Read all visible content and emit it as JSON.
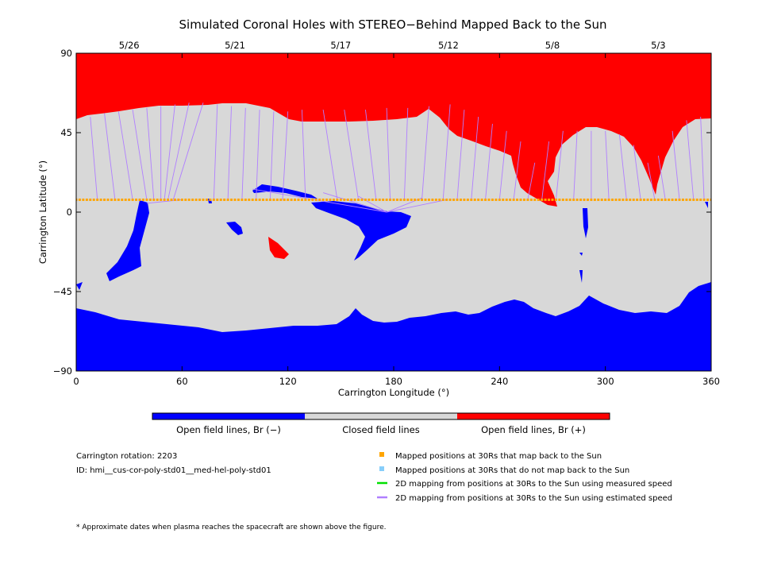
{
  "chart_data": {
    "type": "heatmap",
    "title": "Simulated Coronal Holes with STEREO−Behind Mapped Back to the Sun",
    "xlabel": "Carrington Longitude (°)",
    "ylabel": "Carrington Latitude (°)",
    "xlim": [
      0,
      360
    ],
    "ylim": [
      -90,
      90
    ],
    "xticks": [
      0,
      60,
      120,
      180,
      240,
      300,
      360
    ],
    "yticks": [
      90,
      45,
      0,
      -45,
      -90
    ],
    "top_axis": {
      "dates": [
        {
          "label": "5/26",
          "lon": 30
        },
        {
          "label": "5/21",
          "lon": 90
        },
        {
          "label": "5/17",
          "lon": 150
        },
        {
          "label": "5/12",
          "lon": 211
        },
        {
          "label": "5/8",
          "lon": 270
        },
        {
          "label": "5/3",
          "lon": 330
        }
      ]
    },
    "colors": {
      "open_negative": "#0000ff",
      "closed": "#d8d8d8",
      "open_positive": "#ff0000",
      "mapped_points": "#ffa500",
      "unmapped_points": "#87cefa",
      "measured_speed": "#00e000",
      "estimated_speed": "#b07fff"
    },
    "colorbar": [
      "Open field lines, Br (−)",
      "Closed field lines",
      "Open field lines, Br (+)"
    ],
    "mapped_latitude": 7,
    "mapping_lines": [
      {
        "from_lon": 0,
        "from_lat": 52,
        "to_lon": 0,
        "to_lat": 7
      },
      {
        "from_lon": 8,
        "from_lat": 54,
        "to_lon": 12,
        "to_lat": 7
      },
      {
        "from_lon": 16,
        "from_lat": 56,
        "to_lon": 22,
        "to_lat": 7
      },
      {
        "from_lon": 24,
        "from_lat": 57,
        "to_lon": 32,
        "to_lat": 7
      },
      {
        "from_lon": 32,
        "from_lat": 58,
        "to_lon": 40,
        "to_lat": 7
      },
      {
        "from_lon": 40,
        "from_lat": 59,
        "to_lon": 44,
        "to_lat": 7
      },
      {
        "from_lon": 48,
        "from_lat": 60,
        "to_lon": 48,
        "to_lat": 7
      },
      {
        "from_lon": 56,
        "from_lat": 61,
        "to_lon": 50,
        "to_lat": 7
      },
      {
        "from_lon": 64,
        "from_lat": 62,
        "to_lon": 52,
        "to_lat": 7
      },
      {
        "from_lon": 72,
        "from_lat": 62,
        "to_lon": 55,
        "to_lat": 7
      },
      {
        "from_lon": 80,
        "from_lat": 61,
        "to_lon": 78,
        "to_lat": 7
      },
      {
        "from_lon": 88,
        "from_lat": 60,
        "to_lon": 86,
        "to_lat": 7
      },
      {
        "from_lon": 96,
        "from_lat": 59,
        "to_lon": 94,
        "to_lat": 7
      },
      {
        "from_lon": 104,
        "from_lat": 58,
        "to_lon": 102,
        "to_lat": 7
      },
      {
        "from_lon": 112,
        "from_lat": 57,
        "to_lon": 110,
        "to_lat": 7
      },
      {
        "from_lon": 120,
        "from_lat": 57,
        "to_lon": 117,
        "to_lat": 7
      },
      {
        "from_lon": 128,
        "from_lat": 58,
        "to_lon": 130,
        "to_lat": 7
      },
      {
        "from_lon": 140,
        "from_lat": 58,
        "to_lon": 148,
        "to_lat": 7
      },
      {
        "from_lon": 152,
        "from_lat": 58,
        "to_lon": 160,
        "to_lat": 7
      },
      {
        "from_lon": 164,
        "from_lat": 58,
        "to_lon": 170,
        "to_lat": 7
      },
      {
        "from_lon": 176,
        "from_lat": 59,
        "to_lon": 178,
        "to_lat": 7
      },
      {
        "from_lon": 188,
        "from_lat": 59,
        "to_lon": 186,
        "to_lat": 7
      },
      {
        "from_lon": 200,
        "from_lat": 60,
        "to_lon": 196,
        "to_lat": 7
      },
      {
        "from_lon": 212,
        "from_lat": 61,
        "to_lon": 208,
        "to_lat": 7
      },
      {
        "from_lon": 220,
        "from_lat": 58,
        "to_lon": 216,
        "to_lat": 7
      },
      {
        "from_lon": 228,
        "from_lat": 54,
        "to_lon": 224,
        "to_lat": 7
      },
      {
        "from_lon": 236,
        "from_lat": 50,
        "to_lon": 232,
        "to_lat": 7
      },
      {
        "from_lon": 244,
        "from_lat": 46,
        "to_lon": 240,
        "to_lat": 7
      },
      {
        "from_lon": 252,
        "from_lat": 40,
        "to_lon": 248,
        "to_lat": 7
      },
      {
        "from_lon": 260,
        "from_lat": 28,
        "to_lon": 256,
        "to_lat": 7
      },
      {
        "from_lon": 268,
        "from_lat": 40,
        "to_lon": 264,
        "to_lat": 7
      },
      {
        "from_lon": 276,
        "from_lat": 46,
        "to_lon": 272,
        "to_lat": 7
      },
      {
        "from_lon": 284,
        "from_lat": 46,
        "to_lon": 282,
        "to_lat": 7
      },
      {
        "from_lon": 292,
        "from_lat": 46,
        "to_lon": 292,
        "to_lat": 7
      },
      {
        "from_lon": 300,
        "from_lat": 46,
        "to_lon": 302,
        "to_lat": 7
      },
      {
        "from_lon": 308,
        "from_lat": 44,
        "to_lon": 312,
        "to_lat": 7
      },
      {
        "from_lon": 316,
        "from_lat": 38,
        "to_lon": 320,
        "to_lat": 7
      },
      {
        "from_lon": 324,
        "from_lat": 28,
        "to_lon": 328,
        "to_lat": 7
      },
      {
        "from_lon": 330,
        "from_lat": 32,
        "to_lon": 334,
        "to_lat": 7
      },
      {
        "from_lon": 338,
        "from_lat": 46,
        "to_lon": 342,
        "to_lat": 7
      },
      {
        "from_lon": 346,
        "from_lat": 52,
        "to_lon": 350,
        "to_lat": 7
      },
      {
        "from_lon": 354,
        "from_lat": 54,
        "to_lon": 356,
        "to_lat": 7
      },
      {
        "from_lon": 100,
        "from_lat": 13,
        "to_lon": 176,
        "to_lat": 0
      },
      {
        "from_lon": 140,
        "from_lat": 11,
        "to_lon": 176,
        "to_lat": 0
      },
      {
        "from_lon": 160,
        "from_lat": 9,
        "to_lon": 176,
        "to_lat": 0
      },
      {
        "from_lon": 196,
        "from_lat": 8,
        "to_lon": 176,
        "to_lat": 0
      },
      {
        "from_lon": 210,
        "from_lat": 7,
        "to_lon": 176,
        "to_lat": 0
      },
      {
        "from_lon": 60,
        "from_lat": 7,
        "to_lon": 40,
        "to_lat": 5
      }
    ]
  },
  "info": {
    "carrington_rotation": "Carrington rotation: 2203",
    "model_id": "ID: hmi__cus-cor-poly-std01__med-hel-poly-std01"
  },
  "legend": [
    {
      "symbol": "square",
      "color_key": "mapped_points",
      "label": "Mapped positions at 30Rs that map back to the Sun"
    },
    {
      "symbol": "square",
      "color_key": "unmapped_points",
      "label": "Mapped positions at 30Rs that do not map back to the Sun"
    },
    {
      "symbol": "line",
      "color_key": "measured_speed",
      "label": "2D mapping from positions at 30Rs to the Sun using measured speed"
    },
    {
      "symbol": "line",
      "color_key": "estimated_speed",
      "label": "2D mapping from positions at 30Rs to the Sun using estimated speed"
    }
  ],
  "footnote": "* Approximate dates when plasma reaches the spacecraft are shown above the figure."
}
